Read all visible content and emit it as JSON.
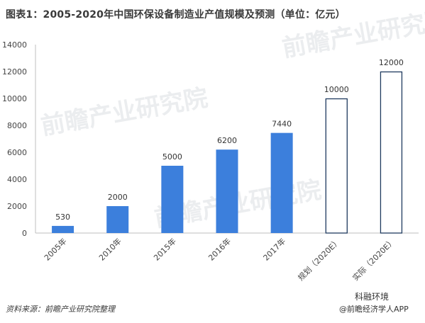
{
  "chart_data": {
    "type": "bar",
    "title": "图表1：2005-2020年中国环保设备制造业产值规模及预测（单位：亿元）",
    "categories": [
      "2005年",
      "2010年",
      "2015年",
      "2016年",
      "2017年",
      "规划（2020E）",
      "实际（2020E）"
    ],
    "values": [
      530,
      2000,
      5000,
      6200,
      7440,
      10000,
      12000
    ],
    "data_labels": [
      "530",
      "2000",
      "5000",
      "6200",
      "7440",
      "10000",
      "12000"
    ],
    "bar_styles": [
      "filled",
      "filled",
      "filled",
      "filled",
      "filled",
      "outline",
      "outline"
    ],
    "ylim": [
      0,
      14000
    ],
    "yticks": [
      "0",
      "2000",
      "4000",
      "6000",
      "8000",
      "10000",
      "12000",
      "14000"
    ],
    "colors": {
      "filled": "#3c7fdc",
      "outline": "#1f3a5f"
    },
    "grid": false,
    "legend": "none"
  },
  "footer": {
    "source": "资料来源：前瞻产业研究院整理",
    "watermark_br_top": "科融环境",
    "watermark_br_bottom": "@前瞻经济学人APP"
  },
  "watermarks": [
    "前瞻产业研究院",
    "前瞻产业研究院",
    "前瞻产业研究院"
  ]
}
